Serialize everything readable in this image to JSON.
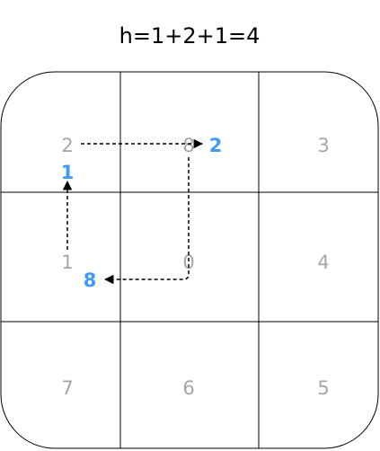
{
  "title": "h=1+2+1=4",
  "colors": {
    "grid_line": "#000000",
    "tile_number": "#a6a6a6",
    "move_label": "#3d9bf5",
    "path": "#000000"
  },
  "grid": {
    "rows": [
      [
        {
          "id": "tile-r1c1",
          "label": "2"
        },
        {
          "id": "tile-r1c2",
          "label": "8"
        },
        {
          "id": "tile-r1c3",
          "label": "3"
        }
      ],
      [
        {
          "id": "tile-r2c1",
          "label": "1"
        },
        {
          "id": "tile-r2c2",
          "label": "0"
        },
        {
          "id": "tile-r2c3",
          "label": "4"
        }
      ],
      [
        {
          "id": "tile-r3c1",
          "label": "7"
        },
        {
          "id": "tile-r3c2",
          "label": "6"
        },
        {
          "id": "tile-r3c3",
          "label": "5"
        }
      ]
    ]
  },
  "moves": [
    {
      "tile": "1",
      "label": "1"
    },
    {
      "tile": "2",
      "label": "2"
    },
    {
      "tile": "8",
      "label": "8"
    }
  ]
}
